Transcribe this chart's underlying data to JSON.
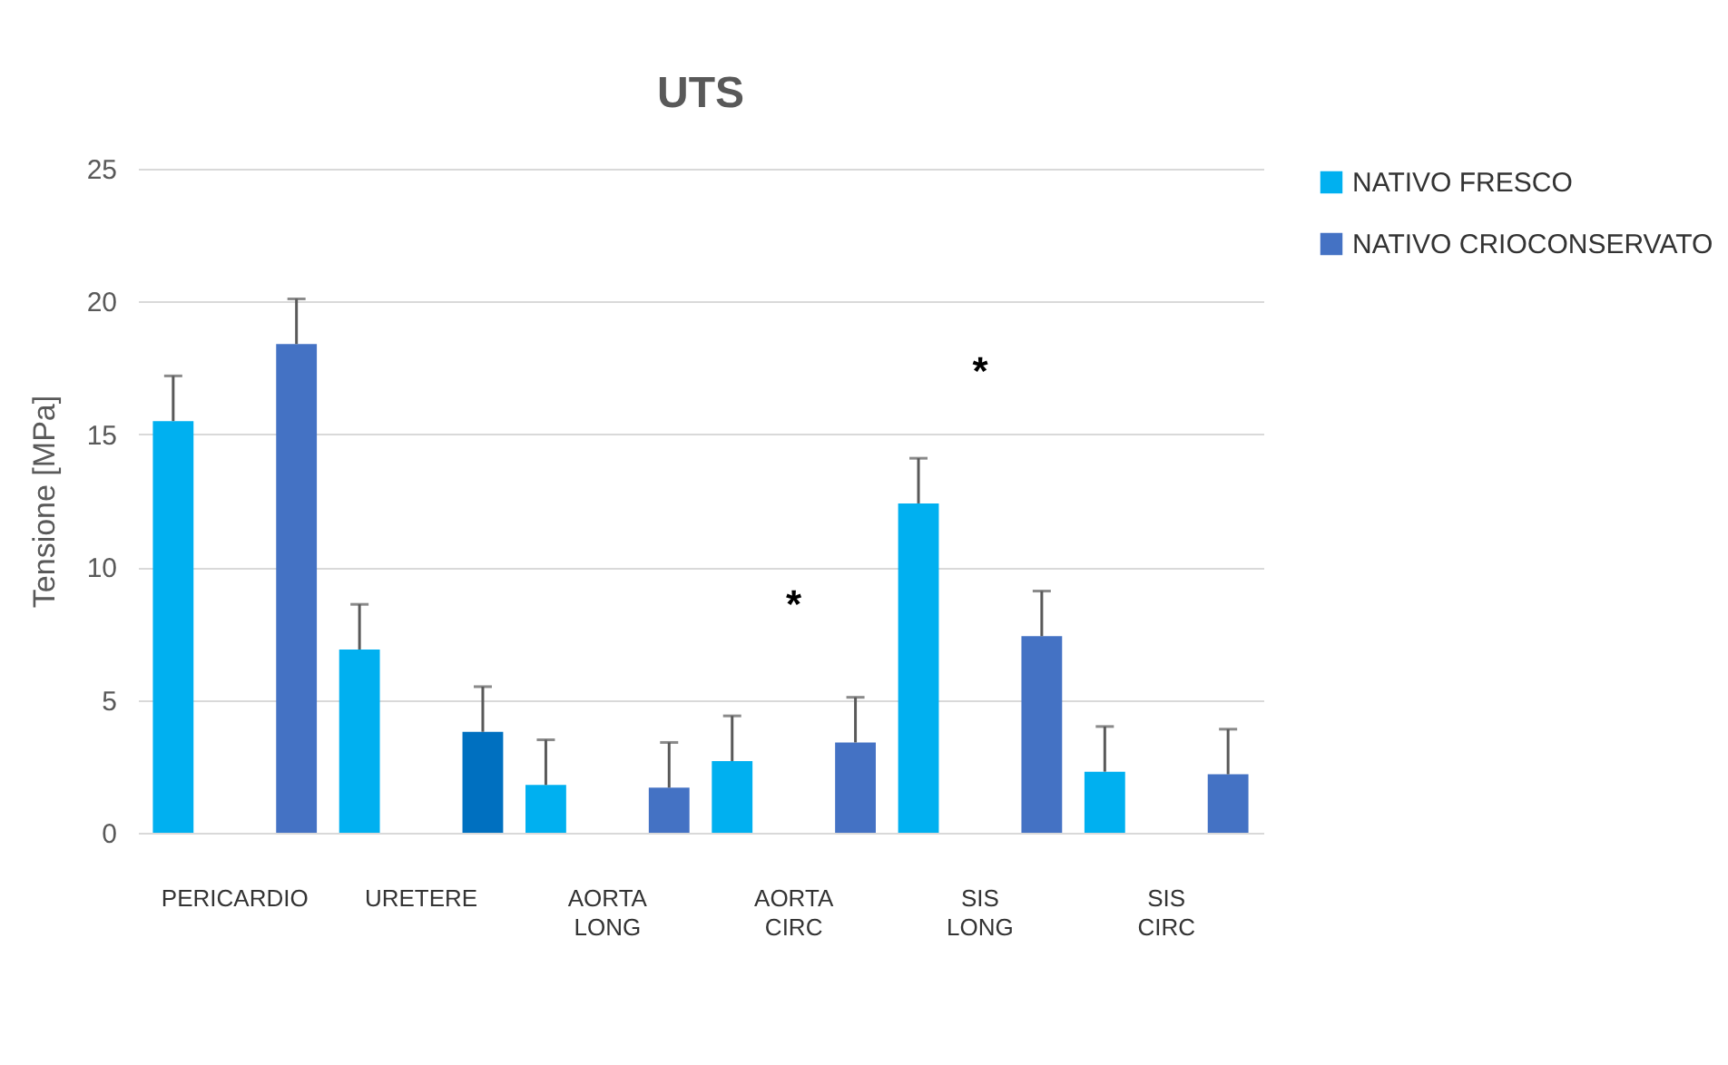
{
  "chart_data": {
    "type": "bar",
    "title": "UTS",
    "ylabel": "Tensione [MPa]",
    "categories": [
      "PERICARDIO",
      "URETERE",
      "AORTA LONG",
      "AORTA CIRC",
      "SIS LONG",
      "SIS CIRC"
    ],
    "series": [
      {
        "name": "NATIVO FRESCO",
        "color": "#00b0f0",
        "values": [
          15.5,
          6.9,
          1.8,
          2.7,
          12.4,
          2.3
        ],
        "errors": [
          [
            15.5,
            17.2
          ],
          [
            6.9,
            8.6
          ],
          [
            1.8,
            3.5
          ],
          [
            2.7,
            4.4
          ],
          [
            12.4,
            14.1
          ],
          [
            2.3,
            4.0
          ]
        ]
      },
      {
        "name": "NATIVO CRIOCONSERVATO",
        "color": "#4472c4",
        "colors": [
          "#4472c4",
          "#0070c0",
          "#4472c4",
          "#4472c4",
          "#4472c4",
          "#4472c4"
        ],
        "values": [
          18.4,
          3.8,
          1.7,
          3.4,
          7.4,
          2.2
        ],
        "errors": [
          [
            18.4,
            20.1
          ],
          [
            3.8,
            5.5
          ],
          [
            1.7,
            3.4
          ],
          [
            3.4,
            5.1
          ],
          [
            7.4,
            9.1
          ],
          [
            2.2,
            3.9
          ]
        ]
      }
    ],
    "ylim": [
      0,
      25
    ],
    "yticks": [
      0,
      5,
      10,
      15,
      20,
      25
    ],
    "grid": "y",
    "legend": "right",
    "annotations": [
      "*",
      "*"
    ]
  }
}
